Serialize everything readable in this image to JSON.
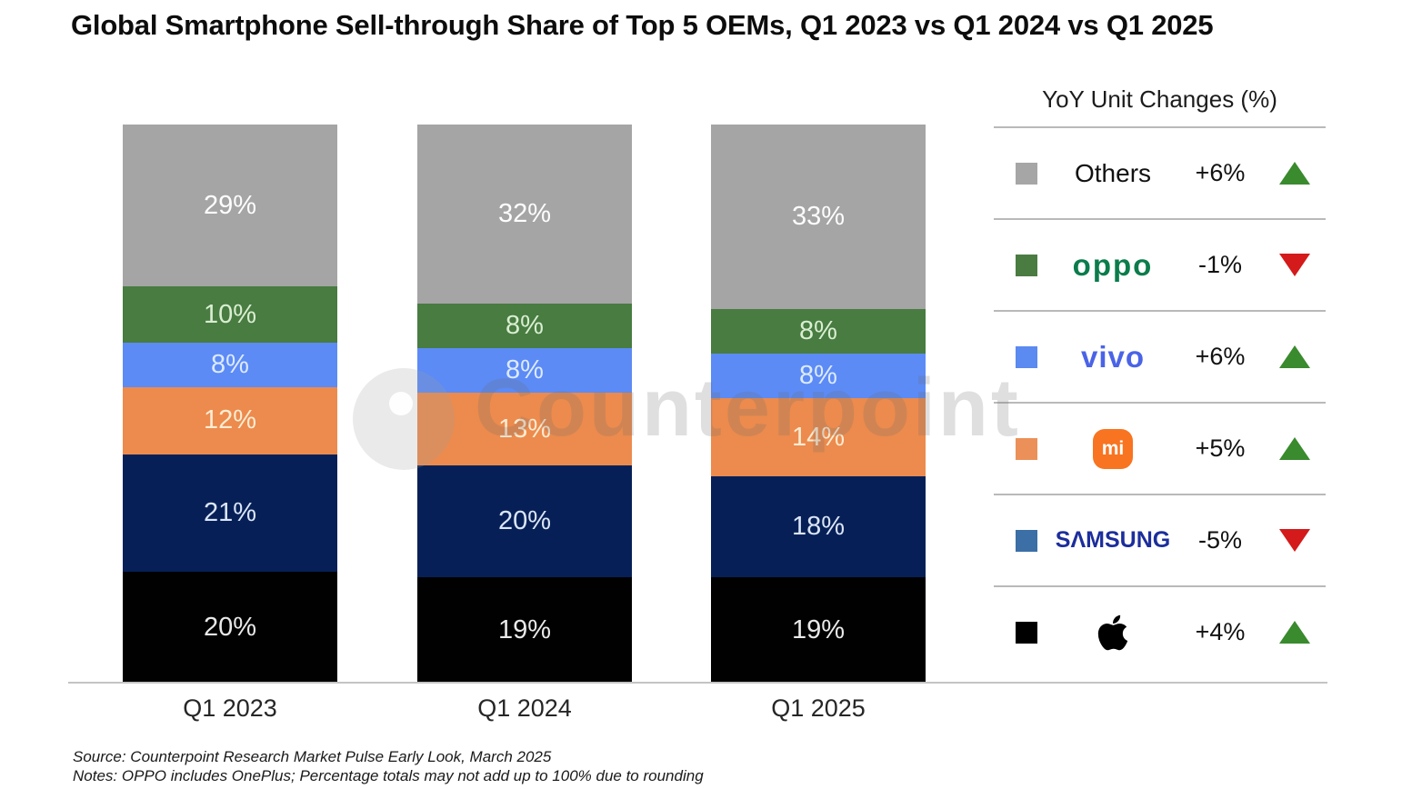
{
  "title": "Global Smartphone Sell-through Share of Top 5 OEMs, Q1 2023 vs Q1 2024 vs Q1 2025",
  "watermark": {
    "text": "Counterpoint"
  },
  "chart_data": {
    "type": "stacked-bar-100",
    "title": "Global Smartphone Sell-through Share of Top 5 OEMs, Q1 2023 vs Q1 2024 vs Q1 2025",
    "categories": [
      "Q1 2023",
      "Q1 2024",
      "Q1 2025"
    ],
    "unit": "%",
    "ylim": [
      0,
      100
    ],
    "grid": false,
    "legend_position": "right",
    "stack_order": "bottom_to_top",
    "series": [
      {
        "name": "Apple",
        "color": "#010101",
        "label_color": "#e9e9e9",
        "values": [
          20,
          19,
          19
        ]
      },
      {
        "name": "Samsung",
        "color": "#062057",
        "label_color": "#dbe5f6",
        "values": [
          21,
          20,
          18
        ]
      },
      {
        "name": "Xiaomi",
        "color": "#ec8b4d",
        "label_color": "#fdecd4",
        "values": [
          12,
          13,
          14
        ]
      },
      {
        "name": "vivo",
        "color": "#5c8bf5",
        "label_color": "#ddeaff",
        "values": [
          8,
          8,
          8
        ]
      },
      {
        "name": "OPPO",
        "color": "#487c41",
        "label_color": "#daeed2",
        "values": [
          10,
          8,
          8
        ]
      },
      {
        "name": "Others",
        "color": "#a5a5a5",
        "label_color": "#fdfdfd",
        "values": [
          29,
          32,
          33
        ]
      }
    ]
  },
  "legend": {
    "title": "YoY Unit Changes (%)",
    "up_color": "#3a8a2e",
    "down_color": "#d41a1a",
    "rows": [
      {
        "name": "Others",
        "swatch": "#a6a6a6",
        "logo_type": "others",
        "logo_text": "Others",
        "change": "+6%",
        "direction": "up"
      },
      {
        "name": "OPPO",
        "swatch": "#4a7c42",
        "logo_type": "oppo",
        "logo_text": "oppo",
        "change": "-1%",
        "direction": "down"
      },
      {
        "name": "vivo",
        "swatch": "#5b8af0",
        "logo_type": "vivo",
        "logo_text": "vivo",
        "change": "+6%",
        "direction": "up"
      },
      {
        "name": "Xiaomi",
        "swatch": "#eb9058",
        "logo_type": "mi",
        "logo_text": "mi",
        "change": "+5%",
        "direction": "up"
      },
      {
        "name": "Samsung",
        "swatch": "#3b6fa6",
        "logo_type": "samsung",
        "logo_text": "SΛMSUNG",
        "change": "-5%",
        "direction": "down"
      },
      {
        "name": "Apple",
        "swatch": "#000000",
        "logo_type": "apple",
        "logo_text": "",
        "change": "+4%",
        "direction": "up"
      }
    ]
  },
  "footer": {
    "source": "Source: Counterpoint Research Market Pulse Early Look, March 2025",
    "notes": "Notes: OPPO includes OnePlus; Percentage totals may not add up to 100% due to rounding"
  }
}
